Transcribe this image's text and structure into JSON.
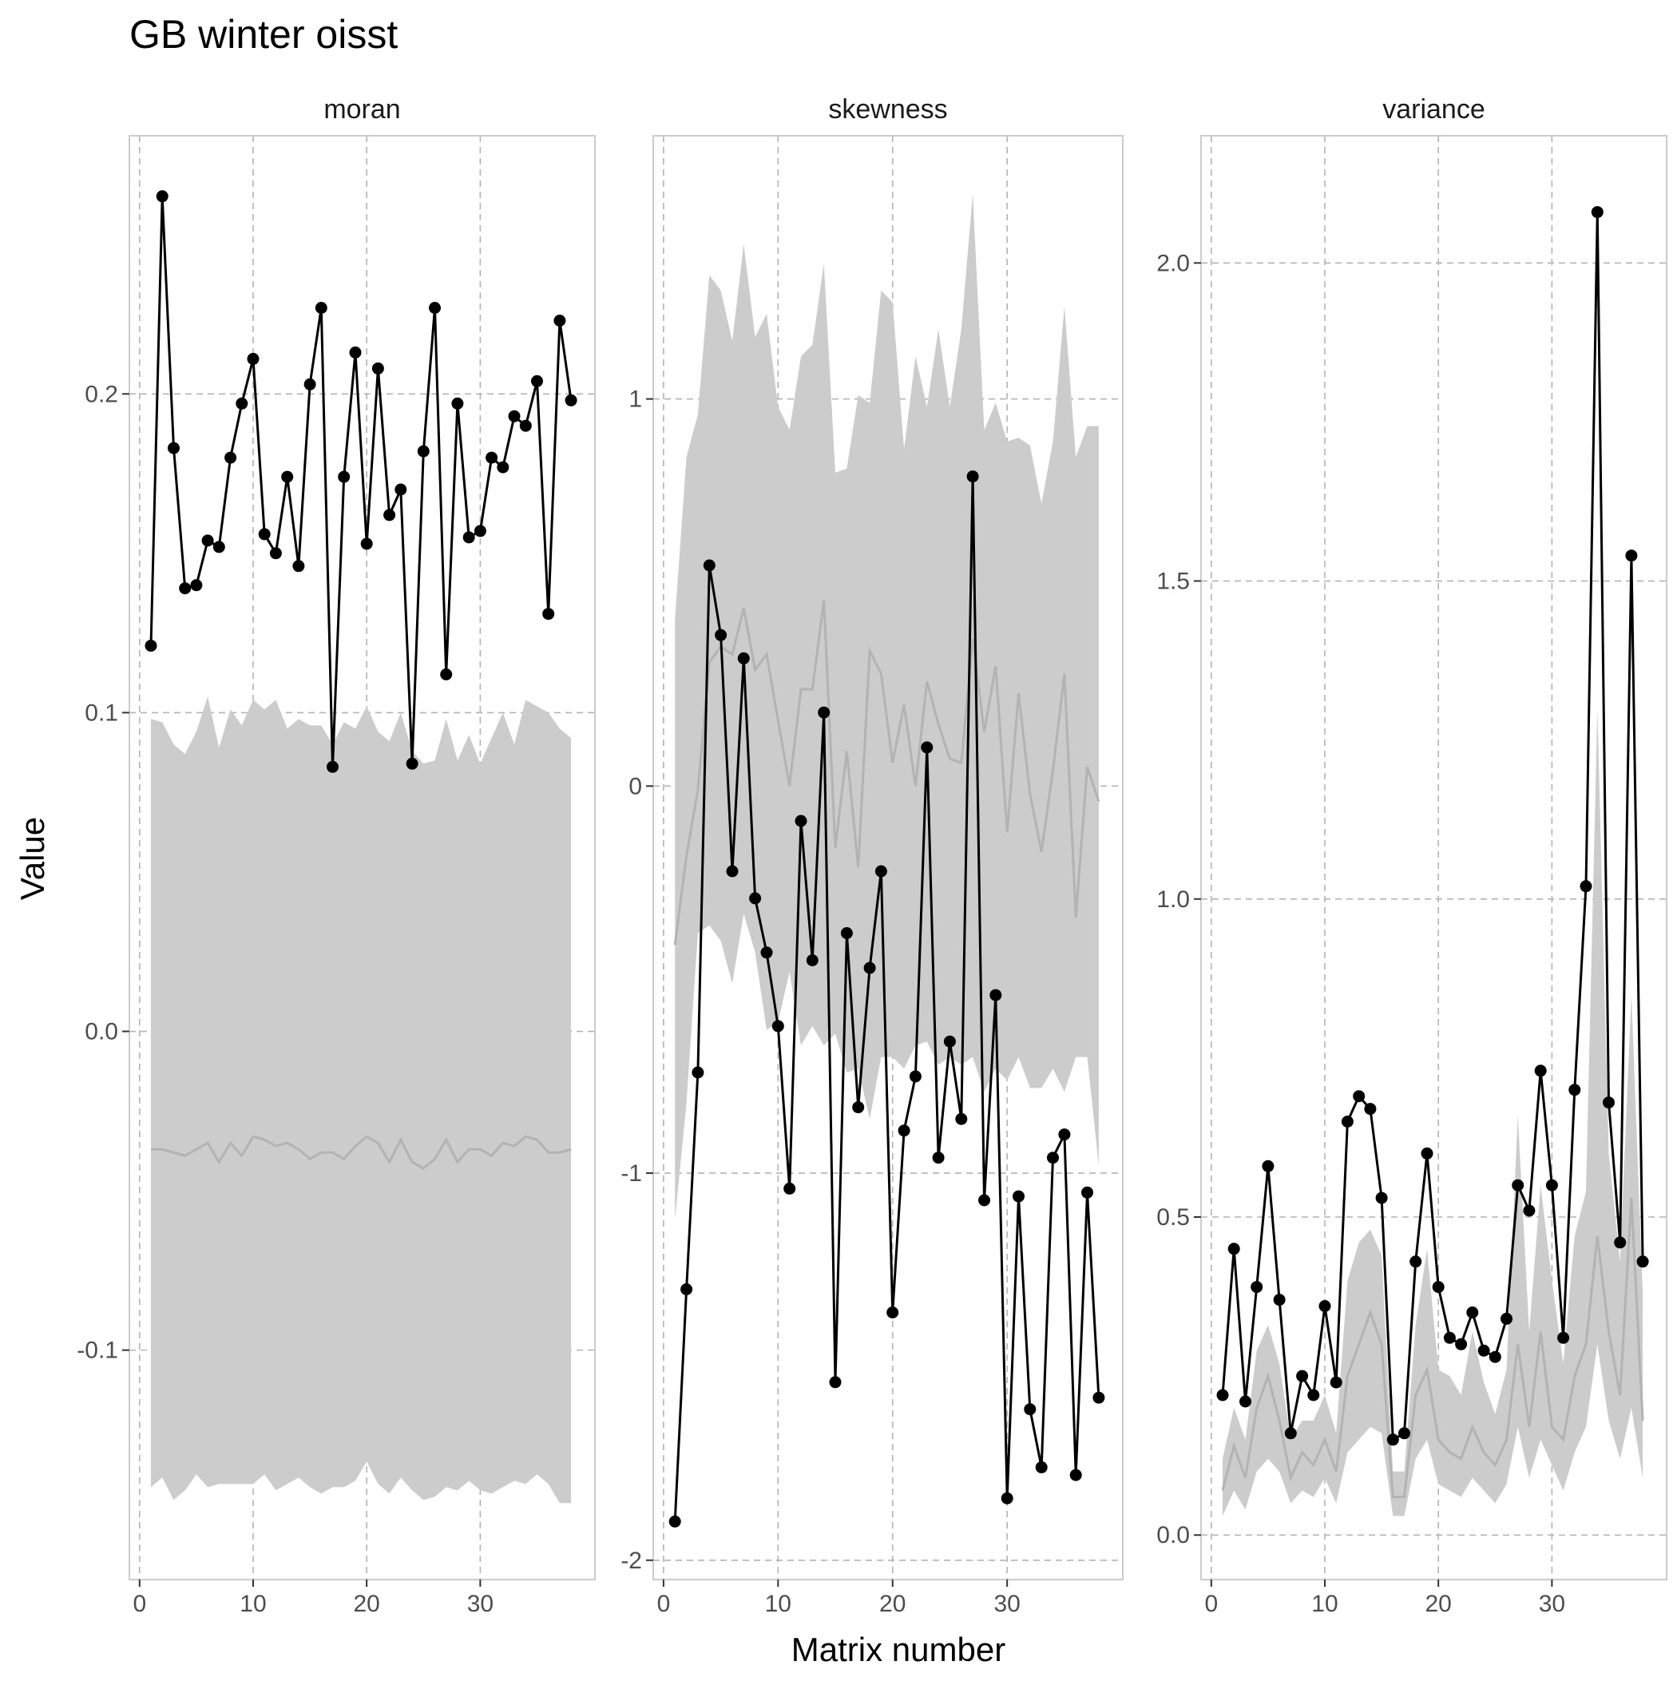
{
  "chart_data": {
    "type": "line",
    "title": "GB winter oisst",
    "xlabel": "Matrix number",
    "ylabel": "Value",
    "colors": {
      "line": "#000000",
      "points": "#000000",
      "band": "#cccccc",
      "median": "#b3b3b3",
      "grid": "#b3b3b3",
      "panel_border": "#cccccc",
      "strip_text": "#1a1a1a",
      "tick_text": "#4d4d4d"
    },
    "grid": true,
    "x": [
      1,
      2,
      3,
      4,
      5,
      6,
      7,
      8,
      9,
      10,
      11,
      12,
      13,
      14,
      15,
      16,
      17,
      18,
      19,
      20,
      21,
      22,
      23,
      24,
      25,
      26,
      27,
      28,
      29,
      30,
      31,
      32,
      33,
      34,
      35,
      36,
      37,
      38
    ],
    "panels": [
      {
        "name": "moran",
        "xlim": [
          -0.9,
          40.1
        ],
        "ylim": [
          -0.172,
          0.281
        ],
        "xticks": [
          0,
          10,
          20,
          30
        ],
        "xtick_labels": [
          "0",
          "10",
          "20",
          "30"
        ],
        "yticks": [
          -0.1,
          0.0,
          0.1,
          0.2
        ],
        "ytick_labels": [
          "-0.1",
          "0.0",
          "0.1",
          "0.2"
        ],
        "values": [
          0.121,
          0.262,
          0.183,
          0.139,
          0.14,
          0.154,
          0.152,
          0.18,
          0.197,
          0.211,
          0.156,
          0.15,
          0.174,
          0.146,
          0.203,
          0.227,
          0.083,
          0.174,
          0.213,
          0.153,
          0.208,
          0.162,
          0.17,
          0.084,
          0.182,
          0.227,
          0.112,
          0.197,
          0.155,
          0.157,
          0.18,
          0.177,
          0.193,
          0.19,
          0.204,
          0.131,
          0.223,
          0.198
        ],
        "band_upper": [
          0.098,
          0.097,
          0.09,
          0.087,
          0.094,
          0.105,
          0.089,
          0.101,
          0.096,
          0.104,
          0.101,
          0.104,
          0.095,
          0.098,
          0.096,
          0.096,
          0.09,
          0.097,
          0.095,
          0.102,
          0.094,
          0.091,
          0.1,
          0.088,
          0.084,
          0.085,
          0.098,
          0.085,
          0.093,
          0.084,
          0.092,
          0.1,
          0.09,
          0.104,
          0.102,
          0.1,
          0.095,
          0.092
        ],
        "band_lower": [
          -0.143,
          -0.14,
          -0.147,
          -0.144,
          -0.139,
          -0.143,
          -0.142,
          -0.142,
          -0.142,
          -0.142,
          -0.139,
          -0.144,
          -0.142,
          -0.14,
          -0.143,
          -0.145,
          -0.143,
          -0.143,
          -0.141,
          -0.135,
          -0.142,
          -0.145,
          -0.14,
          -0.144,
          -0.147,
          -0.146,
          -0.143,
          -0.144,
          -0.141,
          -0.144,
          -0.145,
          -0.143,
          -0.141,
          -0.142,
          -0.139,
          -0.142,
          -0.148,
          -0.148
        ],
        "median": [
          -0.037,
          -0.037,
          -0.038,
          -0.039,
          -0.037,
          -0.035,
          -0.041,
          -0.035,
          -0.039,
          -0.033,
          -0.034,
          -0.036,
          -0.035,
          -0.037,
          -0.04,
          -0.038,
          -0.038,
          -0.04,
          -0.036,
          -0.033,
          -0.035,
          -0.041,
          -0.034,
          -0.041,
          -0.043,
          -0.04,
          -0.034,
          -0.041,
          -0.037,
          -0.037,
          -0.039,
          -0.035,
          -0.036,
          -0.033,
          -0.034,
          -0.038,
          -0.038,
          -0.037
        ]
      },
      {
        "name": "skewness",
        "xlim": [
          -0.9,
          40.1
        ],
        "ylim": [
          -2.05,
          1.68
        ],
        "xticks": [
          0,
          10,
          20,
          30
        ],
        "xtick_labels": [
          "0",
          "10",
          "20",
          "30"
        ],
        "yticks": [
          -2,
          -1,
          0,
          1
        ],
        "ytick_labels": [
          "-2",
          "-1",
          "0",
          "1"
        ],
        "values": [
          -1.9,
          -1.3,
          -0.74,
          0.57,
          0.39,
          -0.22,
          0.33,
          -0.29,
          -0.43,
          -0.62,
          -1.04,
          -0.09,
          -0.45,
          0.19,
          -1.54,
          -0.38,
          -0.83,
          -0.47,
          -0.22,
          -1.36,
          -0.89,
          -0.75,
          0.1,
          -0.96,
          -0.66,
          -0.86,
          0.8,
          -1.07,
          -0.54,
          -1.84,
          -1.06,
          -1.61,
          -1.76,
          -0.96,
          -0.9,
          -1.78,
          -1.05,
          -1.58
        ],
        "band_upper": [
          0.43,
          0.85,
          0.96,
          1.32,
          1.28,
          1.15,
          1.4,
          1.16,
          1.22,
          0.98,
          0.92,
          1.11,
          1.14,
          1.35,
          0.81,
          0.82,
          1.01,
          0.99,
          1.28,
          1.25,
          0.87,
          1.11,
          0.98,
          1.18,
          0.98,
          1.18,
          1.53,
          0.92,
          0.99,
          0.89,
          0.9,
          0.88,
          0.73,
          0.89,
          1.24,
          0.85,
          0.93,
          0.93
        ],
        "band_lower": [
          -1.12,
          -0.82,
          -0.38,
          -0.36,
          -0.4,
          -0.51,
          -0.33,
          -0.43,
          -0.63,
          -0.61,
          -0.48,
          -0.67,
          -0.62,
          -0.67,
          -0.64,
          -0.74,
          -0.73,
          -0.86,
          -0.7,
          -0.7,
          -0.73,
          -0.67,
          -0.66,
          -0.72,
          -0.7,
          -0.72,
          -0.7,
          -0.79,
          -0.73,
          -0.76,
          -0.7,
          -0.78,
          -0.78,
          -0.73,
          -0.79,
          -0.7,
          -0.7,
          -0.98
        ],
        "median": [
          -0.41,
          -0.18,
          -0.01,
          0.32,
          0.36,
          0.34,
          0.46,
          0.3,
          0.34,
          0.17,
          0.0,
          0.25,
          0.25,
          0.48,
          -0.16,
          0.09,
          -0.21,
          0.35,
          0.29,
          0.06,
          0.21,
          0.0,
          0.27,
          0.16,
          0.07,
          0.06,
          0.38,
          0.14,
          0.31,
          -0.12,
          0.24,
          -0.02,
          -0.17,
          0.04,
          0.29,
          -0.34,
          0.05,
          -0.04
        ]
      },
      {
        "name": "variance",
        "xlim": [
          -0.9,
          40.1
        ],
        "ylim": [
          -0.07,
          2.2
        ],
        "xticks": [
          0,
          10,
          20,
          30
        ],
        "xtick_labels": [
          "0",
          "10",
          "20",
          "30"
        ],
        "yticks": [
          0.0,
          0.5,
          1.0,
          1.5,
          2.0
        ],
        "ytick_labels": [
          "0.0",
          "0.5",
          "1.0",
          "1.5",
          "2.0"
        ],
        "values": [
          0.22,
          0.45,
          0.21,
          0.39,
          0.58,
          0.37,
          0.16,
          0.25,
          0.22,
          0.36,
          0.24,
          0.65,
          0.69,
          0.67,
          0.53,
          0.15,
          0.16,
          0.43,
          0.6,
          0.39,
          0.31,
          0.3,
          0.35,
          0.29,
          0.28,
          0.34,
          0.55,
          0.51,
          0.73,
          0.55,
          0.31,
          0.7,
          1.02,
          2.08,
          0.68,
          0.46,
          1.54,
          0.43
        ],
        "band_upper": [
          0.12,
          0.2,
          0.15,
          0.29,
          0.33,
          0.27,
          0.15,
          0.18,
          0.18,
          0.22,
          0.16,
          0.4,
          0.46,
          0.48,
          0.44,
          0.1,
          0.1,
          0.33,
          0.45,
          0.26,
          0.25,
          0.22,
          0.32,
          0.24,
          0.19,
          0.26,
          0.66,
          0.32,
          0.55,
          0.4,
          0.27,
          0.47,
          0.54,
          1.3,
          0.6,
          0.43,
          0.85,
          0.38
        ],
        "band_lower": [
          0.03,
          0.07,
          0.04,
          0.1,
          0.12,
          0.1,
          0.05,
          0.07,
          0.06,
          0.09,
          0.05,
          0.13,
          0.15,
          0.17,
          0.16,
          0.03,
          0.03,
          0.12,
          0.15,
          0.08,
          0.07,
          0.06,
          0.09,
          0.07,
          0.05,
          0.08,
          0.17,
          0.09,
          0.15,
          0.11,
          0.07,
          0.13,
          0.17,
          0.3,
          0.18,
          0.12,
          0.2,
          0.09
        ],
        "median": [
          0.07,
          0.14,
          0.09,
          0.2,
          0.25,
          0.18,
          0.09,
          0.13,
          0.11,
          0.15,
          0.1,
          0.25,
          0.3,
          0.35,
          0.3,
          0.06,
          0.06,
          0.22,
          0.26,
          0.15,
          0.13,
          0.12,
          0.17,
          0.13,
          0.11,
          0.15,
          0.3,
          0.17,
          0.32,
          0.17,
          0.15,
          0.25,
          0.3,
          0.47,
          0.32,
          0.22,
          0.53,
          0.18
        ]
      }
    ]
  }
}
